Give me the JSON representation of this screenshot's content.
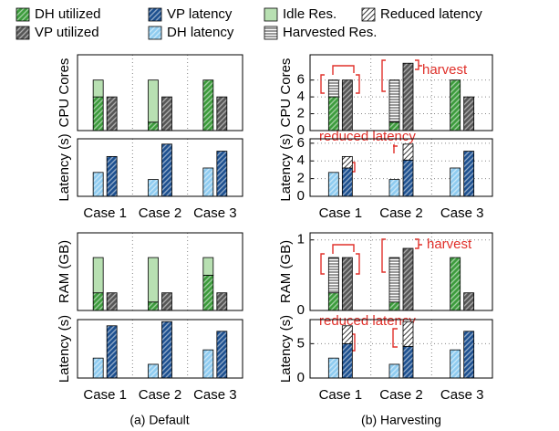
{
  "legend": [
    {
      "name": "DH utilized",
      "color": "#3b9b3b",
      "pattern": "hatch"
    },
    {
      "name": "VP latency",
      "color": "#1c4f8f",
      "pattern": "hatch"
    },
    {
      "name": "Idle Res.",
      "color": "#b8e0b2",
      "pattern": "solid"
    },
    {
      "name": "Reduced latency",
      "color": "#333333",
      "pattern": "lines-diag"
    },
    {
      "name": "VP utilized",
      "color": "#555555",
      "pattern": "hatch"
    },
    {
      "name": "DH latency",
      "color": "#8ecbf0",
      "pattern": "hatch"
    },
    {
      "name": "Harvested Res.",
      "color": "#333333",
      "pattern": "lines-h"
    }
  ],
  "captions": [
    "(a) Default",
    "(b) Harvesting"
  ],
  "chart_data": [
    {
      "type": "bar",
      "ylabel": "CPU Cores",
      "ylim": [
        0,
        9
      ],
      "categories": [
        null,
        null,
        null
      ],
      "series": [
        {
          "name": "DH utilized",
          "bar": 0,
          "values": [
            4,
            1,
            6
          ]
        },
        {
          "name": "Idle Res.",
          "bar": 0,
          "values": [
            2,
            5,
            0
          ]
        },
        {
          "name": "VP utilized",
          "bar": 1,
          "values": [
            4,
            4,
            4
          ]
        }
      ]
    },
    {
      "type": "bar",
      "ylabel": "Latency (s)",
      "ylim": [
        0,
        6.5
      ],
      "categories": [
        "Case 1",
        "Case 2",
        "Case 3"
      ],
      "series": [
        {
          "name": "DH latency",
          "bar": 0,
          "values": [
            2.7,
            1.9,
            3.2
          ]
        },
        {
          "name": "VP latency",
          "bar": 1,
          "values": [
            4.5,
            5.9,
            5.1
          ]
        }
      ]
    },
    {
      "type": "bar",
      "ylabel": "RAM (GB)",
      "ylim": [
        0,
        1.1
      ],
      "categories": [
        null,
        null,
        null
      ],
      "series": [
        {
          "name": "DH utilized",
          "bar": 0,
          "values": [
            0.25,
            0.12,
            0.5
          ]
        },
        {
          "name": "Idle Res.",
          "bar": 0,
          "values": [
            0.5,
            0.63,
            0.25
          ]
        },
        {
          "name": "VP utilized",
          "bar": 1,
          "values": [
            0.25,
            0.25,
            0.25
          ]
        }
      ]
    },
    {
      "type": "bar",
      "ylabel": "Latency (s)",
      "ylim": [
        0,
        8.5
      ],
      "categories": [
        "Case 1",
        "Case 2",
        "Case 3"
      ],
      "series": [
        {
          "name": "DH latency",
          "bar": 0,
          "values": [
            2.9,
            2.0,
            4.1
          ]
        },
        {
          "name": "VP latency",
          "bar": 1,
          "values": [
            7.6,
            8.2,
            6.8
          ]
        }
      ]
    },
    {
      "type": "bar",
      "ylabel": "CPU Cores",
      "ylim": [
        0,
        9
      ],
      "yticks": [
        0,
        2,
        4,
        6
      ],
      "grid": true,
      "categories": [
        null,
        null,
        null
      ],
      "annotation": "harvest",
      "series": [
        {
          "name": "DH utilized",
          "bar": 0,
          "values": [
            4,
            1,
            6
          ]
        },
        {
          "name": "Harvested Res.",
          "bar": 0,
          "values": [
            2,
            5,
            0
          ]
        },
        {
          "name": "VP utilized",
          "bar": 1,
          "values": [
            6,
            8,
            4
          ]
        }
      ]
    },
    {
      "type": "bar",
      "ylabel": "Latency (s)",
      "ylim": [
        0,
        6.5
      ],
      "yticks": [
        0,
        2,
        4,
        6
      ],
      "grid": true,
      "categories": [
        "Case 1",
        "Case 2",
        "Case 3"
      ],
      "annotation": "reduced latency",
      "series": [
        {
          "name": "DH latency",
          "bar": 0,
          "values": [
            2.7,
            1.9,
            3.2
          ]
        },
        {
          "name": "VP latency",
          "bar": 1,
          "values": [
            3.2,
            4.1,
            5.1
          ]
        },
        {
          "name": "Reduced latency",
          "bar": 1,
          "values": [
            1.3,
            1.8,
            0
          ]
        }
      ]
    },
    {
      "type": "bar",
      "ylabel": "RAM (GB)",
      "ylim": [
        0,
        1.1
      ],
      "yticks": [
        0,
        1
      ],
      "grid": true,
      "categories": [
        null,
        null,
        null
      ],
      "annotation": "harvest",
      "series": [
        {
          "name": "DH utilized",
          "bar": 0,
          "values": [
            0.25,
            0.12,
            0.75
          ]
        },
        {
          "name": "Harvested Res.",
          "bar": 0,
          "values": [
            0.5,
            0.63,
            0
          ]
        },
        {
          "name": "VP utilized",
          "bar": 1,
          "values": [
            0.75,
            0.88,
            0.25
          ]
        }
      ]
    },
    {
      "type": "bar",
      "ylabel": "Latency (s)",
      "ylim": [
        0,
        8.5
      ],
      "yticks": [
        0,
        5
      ],
      "grid": true,
      "categories": [
        "Case 1",
        "Case 2",
        "Case 3"
      ],
      "annotation": "reduced latency",
      "series": [
        {
          "name": "DH latency",
          "bar": 0,
          "values": [
            2.9,
            2.0,
            4.1
          ]
        },
        {
          "name": "VP latency",
          "bar": 1,
          "values": [
            5.0,
            4.6,
            6.8
          ]
        },
        {
          "name": "Reduced latency",
          "bar": 1,
          "values": [
            2.6,
            3.6,
            0
          ]
        }
      ]
    }
  ]
}
